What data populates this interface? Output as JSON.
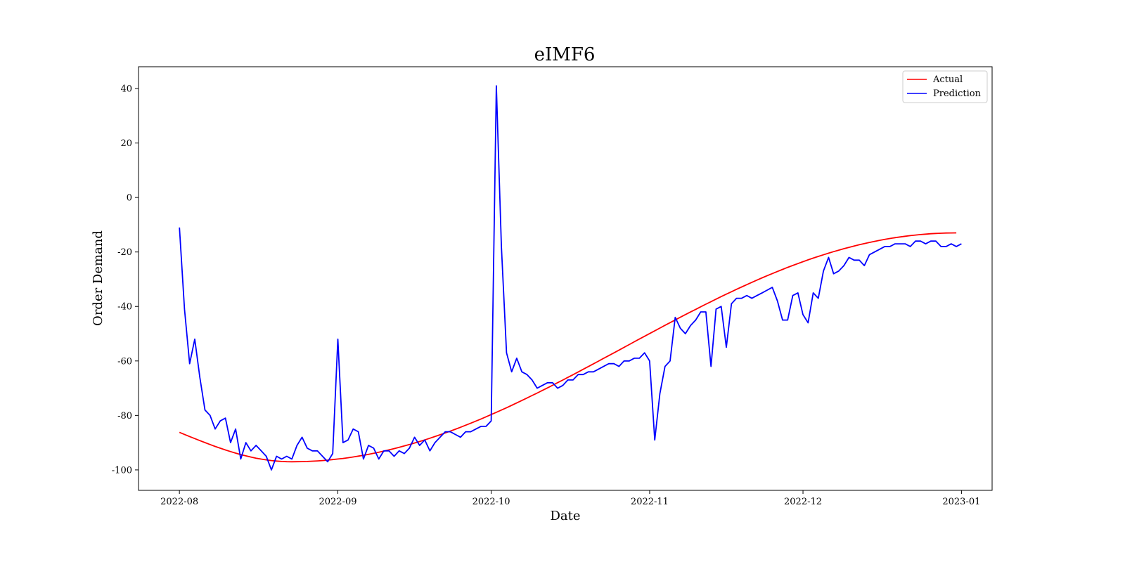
{
  "chart_data": {
    "type": "line",
    "title": "eIMF6",
    "xlabel": "Date",
    "ylabel": "Order Demand",
    "x_start_date": "2022-08-01",
    "x_step_days": 1,
    "xlim": [
      "2022-07-24",
      "2023-01-07"
    ],
    "ylim": [
      -107.5,
      48.0
    ],
    "x_ticks": [
      {
        "date": "2022-08-01",
        "label": "2022-08"
      },
      {
        "date": "2022-09-01",
        "label": "2022-09"
      },
      {
        "date": "2022-10-01",
        "label": "2022-10"
      },
      {
        "date": "2022-11-01",
        "label": "2022-11"
      },
      {
        "date": "2022-12-01",
        "label": "2022-12"
      },
      {
        "date": "2023-01-01",
        "label": "2023-01"
      }
    ],
    "y_ticks": [
      40,
      20,
      0,
      -20,
      -40,
      -60,
      -80,
      -100
    ],
    "grid": false,
    "legend_position": "top-right",
    "series": [
      {
        "name": "Actual",
        "color": "#ff0000",
        "curve": "cosine",
        "min_value": -97.0,
        "min_date": "2022-08-23",
        "max_value": -13.0,
        "max_date": "2022-12-31",
        "start_value": -86.2
      },
      {
        "name": "Prediction",
        "color": "#0000ff",
        "values": [
          -11,
          -41,
          -61,
          -52,
          -66,
          -78,
          -80,
          -85,
          -82,
          -81,
          -90,
          -85,
          -96,
          -90,
          -93,
          -91,
          -93,
          -95,
          -100,
          -95,
          -96,
          -95,
          -96,
          -91,
          -88,
          -92,
          -93,
          -93,
          -95,
          -97,
          -94,
          -52,
          -90,
          -89,
          -85,
          -86,
          -96,
          -91,
          -92,
          -96,
          -93,
          -93,
          -95,
          -93,
          -94,
          -92,
          -88,
          -91,
          -89,
          -93,
          -90,
          -88,
          -86,
          -86,
          -87,
          -88,
          -86,
          -86,
          -85,
          -84,
          -84,
          -82,
          41,
          -18,
          -57,
          -64,
          -59,
          -64,
          -65,
          -67,
          -70,
          -69,
          -68,
          -68,
          -70,
          -69,
          -67,
          -67,
          -65,
          -65,
          -64,
          -64,
          -63,
          -62,
          -61,
          -61,
          -62,
          -60,
          -60,
          -59,
          -59,
          -57,
          -60,
          -89,
          -72,
          -62,
          -60,
          -44,
          -48,
          -50,
          -47,
          -45,
          -42,
          -42,
          -62,
          -41,
          -40,
          -55,
          -39,
          -37,
          -37,
          -36,
          -37,
          -36,
          -35,
          -34,
          -33,
          -38,
          -45,
          -45,
          -36,
          -35,
          -43,
          -46,
          -35,
          -37,
          -27,
          -22,
          -28,
          -27,
          -25,
          -22,
          -23,
          -23,
          -25,
          -21,
          -20,
          -19,
          -18,
          -18,
          -17,
          -17,
          -17,
          -18,
          -16,
          -16,
          -17,
          -16,
          -16,
          -18,
          -18,
          -17,
          -18,
          -17
        ]
      }
    ]
  }
}
